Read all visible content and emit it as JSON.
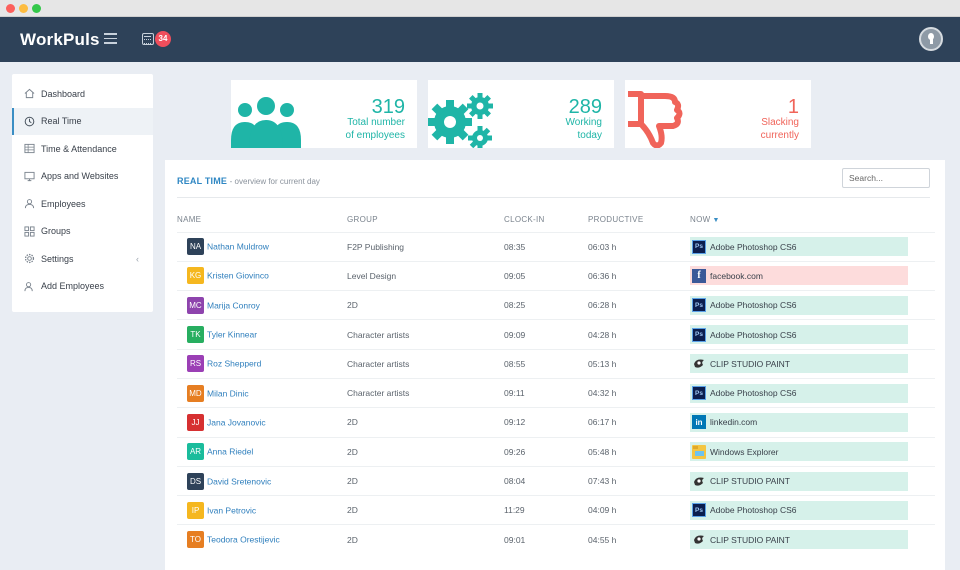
{
  "app": {
    "brand": "WorkPuls",
    "badge_count": "34"
  },
  "sidebar": {
    "items": [
      {
        "label": "Dashboard",
        "icon": "home-icon",
        "active": false
      },
      {
        "label": "Real Time",
        "icon": "clock-icon",
        "active": true
      },
      {
        "label": "Time & Attendance",
        "icon": "table-icon",
        "active": false
      },
      {
        "label": "Apps and Websites",
        "icon": "monitor-icon",
        "active": false
      },
      {
        "label": "Employees",
        "icon": "users-icon",
        "active": false
      },
      {
        "label": "Groups",
        "icon": "grid-icon",
        "active": false
      },
      {
        "label": "Settings",
        "icon": "gear-icon",
        "active": false,
        "has_chevron": true
      },
      {
        "label": "Add Employees",
        "icon": "user-add-icon",
        "active": false
      }
    ]
  },
  "stats": {
    "total": {
      "number": "319",
      "line1": "Total number",
      "line2": "of employees",
      "icon": "users-group-icon",
      "color": "#1fb5a7"
    },
    "working": {
      "number": "289",
      "line1": "Working",
      "line2": "today",
      "icon": "gears-icon",
      "color": "#1fb5a7"
    },
    "slacking": {
      "number": "1",
      "line1": "Slacking",
      "line2": "currently",
      "icon": "thumbs-down-icon",
      "color": "#f0645a"
    }
  },
  "panel": {
    "title": "REAL TIME",
    "subtitle": "- overview for current day",
    "search_placeholder": "Search..."
  },
  "table": {
    "headers": {
      "name": "NAME",
      "group": "GROUP",
      "clock_in": "CLOCK-IN",
      "productive": "PRODUCTIVE",
      "now": "NOW"
    },
    "rows": [
      {
        "initials": "NA",
        "name": "Nathan Muldrow",
        "group": "F2P Publishing",
        "clock_in": "08:35",
        "productive": "06:03 h",
        "now": "Adobe Photoshop CS6",
        "app": "ps",
        "status": "green",
        "color": "#2e4259"
      },
      {
        "initials": "KG",
        "name": "Kristen Giovinco",
        "group": "Level Design",
        "clock_in": "09:05",
        "productive": "06:36 h",
        "now": "facebook.com",
        "app": "fb",
        "status": "red",
        "color": "#f5b71f"
      },
      {
        "initials": "MC",
        "name": "Marija Conroy",
        "group": "2D",
        "clock_in": "08:25",
        "productive": "06:28 h",
        "now": "Adobe Photoshop CS6",
        "app": "ps",
        "status": "green",
        "color": "#8e44ad"
      },
      {
        "initials": "TK",
        "name": "Tyler Kinnear",
        "group": "Character artists",
        "clock_in": "09:09",
        "productive": "04:28 h",
        "now": "Adobe Photoshop CS6",
        "app": "ps",
        "status": "green",
        "color": "#27ae60"
      },
      {
        "initials": "RS",
        "name": "Roz Shepperd",
        "group": "Character artists",
        "clock_in": "08:55",
        "productive": "05:13 h",
        "now": "CLIP STUDIO PAINT",
        "app": "clip",
        "status": "green",
        "color": "#9b3fb5"
      },
      {
        "initials": "MD",
        "name": "Milan Dinic",
        "group": "Character artists",
        "clock_in": "09:11",
        "productive": "04:32 h",
        "now": "Adobe Photoshop CS6",
        "app": "ps",
        "status": "green",
        "color": "#e67e22"
      },
      {
        "initials": "JJ",
        "name": "Jana Jovanovic",
        "group": "2D",
        "clock_in": "09:12",
        "productive": "06:17 h",
        "now": "linkedin.com",
        "app": "li",
        "status": "green",
        "color": "#d63031"
      },
      {
        "initials": "AR",
        "name": "Anna Riedel",
        "group": "2D",
        "clock_in": "09:26",
        "productive": "05:48 h",
        "now": "Windows Explorer",
        "app": "win",
        "status": "green",
        "color": "#1abc9c"
      },
      {
        "initials": "DS",
        "name": "David Sretenovic",
        "group": "2D",
        "clock_in": "08:04",
        "productive": "07:43 h",
        "now": "CLIP STUDIO PAINT",
        "app": "clip",
        "status": "green",
        "color": "#2e4259"
      },
      {
        "initials": "IP",
        "name": "Ivan Petrovic",
        "group": "2D",
        "clock_in": "11:29",
        "productive": "04:09 h",
        "now": "Adobe Photoshop CS6",
        "app": "ps",
        "status": "green",
        "color": "#f5b71f"
      },
      {
        "initials": "TO",
        "name": "Teodora Orestijevic",
        "group": "2D",
        "clock_in": "09:01",
        "productive": "04:55 h",
        "now": "CLIP STUDIO PAINT",
        "app": "clip",
        "status": "green",
        "color": "#e67e22"
      }
    ]
  }
}
